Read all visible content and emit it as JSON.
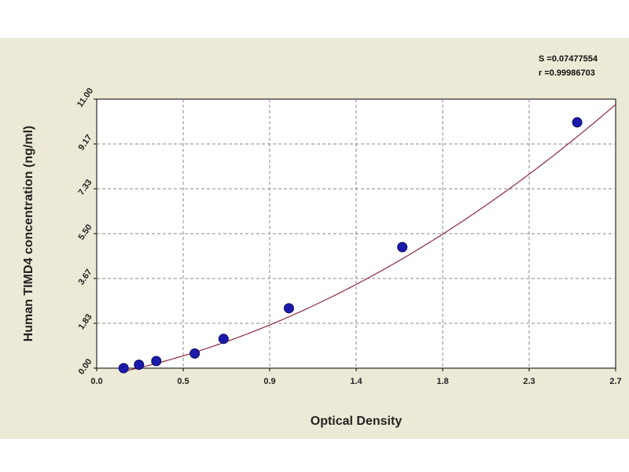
{
  "chart_data": {
    "type": "scatter",
    "title": "",
    "xlabel": "Optical Density",
    "ylabel": "Human TIMD4 concentration (ng/ml)",
    "xlim": [
      0.0,
      2.7
    ],
    "ylim": [
      0.0,
      11.0
    ],
    "x_ticks": [
      "0.0",
      "0.5",
      "0.9",
      "1.4",
      "1.8",
      "2.3",
      "2.7"
    ],
    "y_ticks": [
      "0.00",
      "1.83",
      "3.67",
      "5.50",
      "7.33",
      "9.17",
      "11.00"
    ],
    "grid": true,
    "stats": [
      "S =0.07477554",
      "r =0.99986703"
    ],
    "series": [
      {
        "points": [
          {
            "x": 0.14,
            "y": 0.0
          },
          {
            "x": 0.22,
            "y": 0.14
          },
          {
            "x": 0.31,
            "y": 0.29
          },
          {
            "x": 0.51,
            "y": 0.6
          },
          {
            "x": 0.66,
            "y": 1.2
          },
          {
            "x": 1.0,
            "y": 2.45
          },
          {
            "x": 1.59,
            "y": 4.95
          },
          {
            "x": 2.5,
            "y": 10.05
          }
        ],
        "fit_coeffs": [
          -0.36,
          1.48,
          0.98
        ],
        "point_color": "#1a1aaa",
        "line_color": "#8b2a3a"
      }
    ]
  }
}
